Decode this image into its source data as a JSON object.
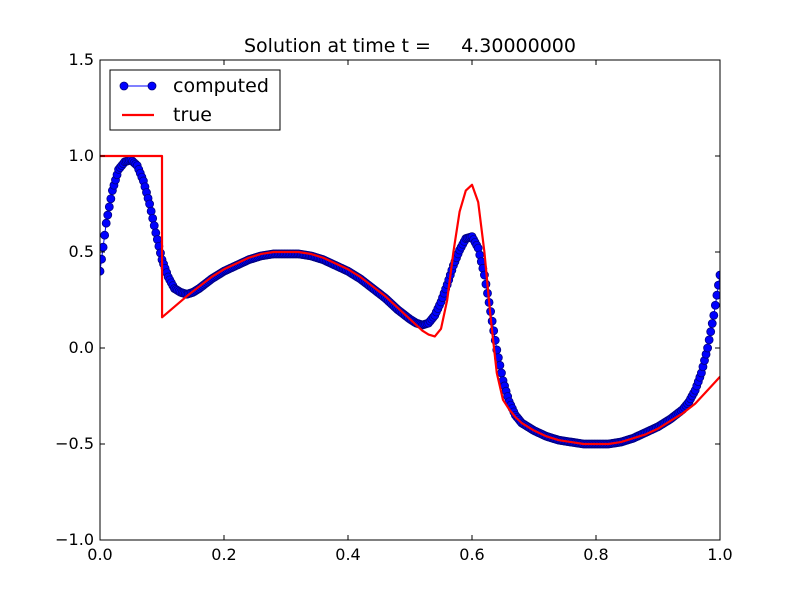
{
  "chart_data": {
    "type": "line",
    "title": "Solution at time t =     4.30000000",
    "xlabel": "",
    "ylabel": "",
    "xlim": [
      0.0,
      1.0
    ],
    "ylim": [
      -1.0,
      1.5
    ],
    "x_ticks": [
      0.0,
      0.2,
      0.4,
      0.6,
      0.8,
      1.0
    ],
    "y_ticks": [
      -1.0,
      -0.5,
      0.0,
      0.5,
      1.0,
      1.5
    ],
    "x_tick_labels": [
      "0.0",
      "0.2",
      "0.4",
      "0.6",
      "0.8",
      "1.0"
    ],
    "y_tick_labels": [
      "−1.0",
      "−0.5",
      "0.0",
      "0.5",
      "1.0",
      "1.5"
    ],
    "grid": false,
    "legend": {
      "position": "top-left"
    },
    "series": [
      {
        "name": "computed",
        "style": "line-with-circle-markers",
        "color": "#0000ff",
        "marker_edge_color": "#000080",
        "x": [
          0.0,
          0.01,
          0.02,
          0.03,
          0.04,
          0.05,
          0.06,
          0.07,
          0.08,
          0.09,
          0.1,
          0.11,
          0.12,
          0.13,
          0.14,
          0.15,
          0.16,
          0.18,
          0.2,
          0.22,
          0.24,
          0.26,
          0.28,
          0.3,
          0.32,
          0.34,
          0.36,
          0.38,
          0.4,
          0.42,
          0.44,
          0.46,
          0.48,
          0.5,
          0.51,
          0.52,
          0.53,
          0.54,
          0.55,
          0.56,
          0.57,
          0.58,
          0.59,
          0.6,
          0.61,
          0.62,
          0.63,
          0.64,
          0.65,
          0.66,
          0.67,
          0.68,
          0.7,
          0.72,
          0.74,
          0.76,
          0.78,
          0.8,
          0.82,
          0.84,
          0.86,
          0.88,
          0.9,
          0.92,
          0.94,
          0.95,
          0.96,
          0.97,
          0.98,
          0.99,
          1.0
        ],
        "y": [
          0.4,
          0.65,
          0.82,
          0.93,
          0.97,
          0.98,
          0.95,
          0.87,
          0.75,
          0.6,
          0.46,
          0.37,
          0.31,
          0.29,
          0.28,
          0.29,
          0.31,
          0.36,
          0.4,
          0.43,
          0.46,
          0.48,
          0.49,
          0.49,
          0.49,
          0.48,
          0.46,
          0.43,
          0.4,
          0.36,
          0.31,
          0.26,
          0.2,
          0.15,
          0.13,
          0.12,
          0.13,
          0.17,
          0.24,
          0.33,
          0.43,
          0.51,
          0.57,
          0.58,
          0.52,
          0.38,
          0.19,
          -0.01,
          -0.17,
          -0.28,
          -0.35,
          -0.39,
          -0.43,
          -0.46,
          -0.48,
          -0.49,
          -0.5,
          -0.5,
          -0.5,
          -0.49,
          -0.47,
          -0.44,
          -0.41,
          -0.37,
          -0.32,
          -0.28,
          -0.22,
          -0.13,
          0.0,
          0.17,
          0.38
        ]
      },
      {
        "name": "true",
        "style": "line",
        "color": "#ff0000",
        "x": [
          0.0,
          0.1,
          0.1,
          0.1001,
          0.14,
          0.16,
          0.18,
          0.2,
          0.22,
          0.24,
          0.26,
          0.28,
          0.3,
          0.32,
          0.34,
          0.36,
          0.38,
          0.4,
          0.42,
          0.44,
          0.46,
          0.48,
          0.5,
          0.52,
          0.53,
          0.54,
          0.55,
          0.56,
          0.57,
          0.58,
          0.59,
          0.6,
          0.61,
          0.62,
          0.63,
          0.64,
          0.65,
          0.66,
          0.67,
          0.68,
          0.7,
          0.72,
          0.74,
          0.76,
          0.78,
          0.8,
          0.82,
          0.84,
          0.86,
          0.88,
          0.9,
          0.92,
          0.94,
          0.96,
          0.98,
          1.0
        ],
        "y": [
          1.0,
          1.0,
          1.0,
          0.16,
          0.27,
          0.32,
          0.37,
          0.41,
          0.44,
          0.47,
          0.49,
          0.5,
          0.5,
          0.5,
          0.49,
          0.47,
          0.44,
          0.41,
          0.37,
          0.32,
          0.27,
          0.21,
          0.15,
          0.09,
          0.07,
          0.06,
          0.1,
          0.25,
          0.5,
          0.71,
          0.82,
          0.85,
          0.76,
          0.5,
          0.16,
          -0.13,
          -0.27,
          -0.32,
          -0.36,
          -0.39,
          -0.43,
          -0.46,
          -0.48,
          -0.49,
          -0.5,
          -0.5,
          -0.5,
          -0.49,
          -0.47,
          -0.45,
          -0.42,
          -0.38,
          -0.34,
          -0.29,
          -0.22,
          -0.15
        ]
      }
    ]
  }
}
